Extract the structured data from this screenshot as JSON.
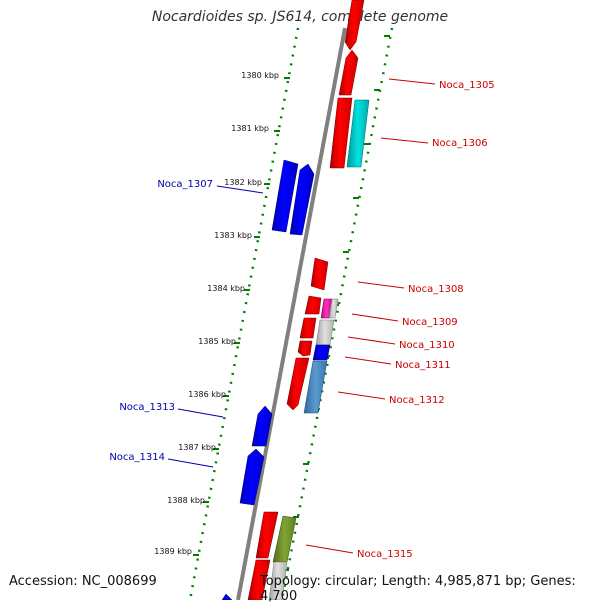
{
  "title": "Nocardioides sp. JS614, complete genome",
  "footer": {
    "accession": "Accession: NC_008699",
    "topology": "Topology: circular; Length: 4,985,871 bp; Genes: 4,700"
  },
  "kbp_labels": [
    "1380 kbp",
    "1381 kbp",
    "1382 kbp",
    "1383 kbp",
    "1384 kbp",
    "1385 kbp",
    "1386 kbp",
    "1387 kbp",
    "1388 kbp",
    "1389 kbp"
  ],
  "colors": {
    "forward": "#ff0000",
    "reverse": "#0000ff",
    "forward_label": "#cc0000",
    "reverse_label": "#0000aa",
    "backbone": "#808080",
    "dotted_guides": "#008000",
    "cyan": "#00cccc",
    "magenta": "#ff00aa",
    "grey": "#c0c0c0",
    "steelblue": "#4682b4",
    "olive": "#6b8e23"
  },
  "gene_labels": [
    {
      "name": "Noca_1305",
      "strand": "forward"
    },
    {
      "name": "Noca_1306",
      "strand": "forward"
    },
    {
      "name": "Noca_1307",
      "strand": "reverse"
    },
    {
      "name": "Noca_1308",
      "strand": "forward"
    },
    {
      "name": "Noca_1309",
      "strand": "forward"
    },
    {
      "name": "Noca_1310",
      "strand": "forward"
    },
    {
      "name": "Noca_1311",
      "strand": "forward"
    },
    {
      "name": "Noca_1312",
      "strand": "forward"
    },
    {
      "name": "Noca_1313",
      "strand": "reverse"
    },
    {
      "name": "Noca_1314",
      "strand": "reverse"
    },
    {
      "name": "Noca_1315",
      "strand": "forward"
    }
  ]
}
